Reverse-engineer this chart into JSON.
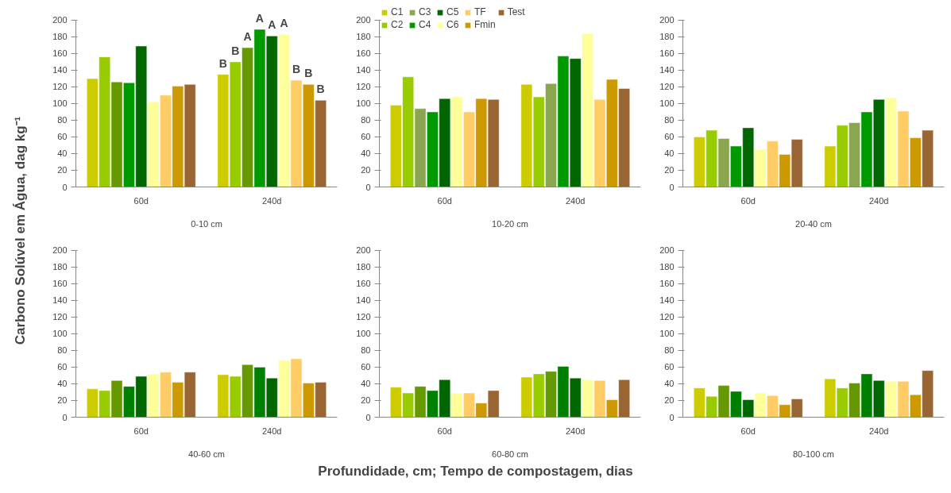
{
  "chart_data": [
    {
      "type": "bar",
      "xlabel": "0-10 cm",
      "ylabel": "Carbono Solúvel em Água, dag kg⁻¹",
      "categories": [
        "60d",
        "240d"
      ],
      "ylim": [
        0,
        200
      ],
      "yticks": [
        0,
        20,
        40,
        60,
        80,
        100,
        120,
        140,
        160,
        180,
        200
      ],
      "grid": false,
      "legend": false,
      "series": [
        {
          "color": "#cccc00",
          "values": [
            130,
            135
          ],
          "value_labels": [
            null,
            "B"
          ]
        },
        {
          "color": "#99cc00",
          "values": [
            156,
            150
          ],
          "value_labels": [
            null,
            "B"
          ]
        },
        {
          "color": "#669900",
          "values": [
            126,
            167
          ],
          "value_labels": [
            null,
            "A"
          ]
        },
        {
          "color": "#009900",
          "values": [
            125,
            189
          ],
          "value_labels": [
            null,
            "A"
          ]
        },
        {
          "color": "#006600",
          "values": [
            169,
            181
          ],
          "value_labels": [
            null,
            "A"
          ]
        },
        {
          "color": "#ffff99",
          "values": [
            102,
            183
          ],
          "value_labels": [
            null,
            "A"
          ]
        },
        {
          "color": "#ffcc66",
          "values": [
            110,
            128
          ],
          "value_labels": [
            null,
            "B"
          ]
        },
        {
          "color": "#cc9900",
          "values": [
            121,
            123
          ],
          "value_labels": [
            null,
            "B"
          ]
        },
        {
          "color": "#996633",
          "values": [
            123,
            104
          ],
          "value_labels": [
            null,
            "B"
          ]
        }
      ]
    },
    {
      "type": "bar",
      "xlabel": "10-20 cm",
      "categories": [
        "60d",
        "240d"
      ],
      "ylim": [
        0,
        200
      ],
      "yticks": [
        0,
        20,
        40,
        60,
        80,
        100,
        120,
        140,
        160,
        180,
        200
      ],
      "grid": false,
      "legend": "top",
      "series": [
        {
          "name": "C1",
          "color": "#cccc00",
          "values": [
            98,
            123
          ]
        },
        {
          "name": "C2",
          "color": "#99cc00",
          "values": [
            132,
            108
          ]
        },
        {
          "name": "C3",
          "color": "#8aa64e",
          "values": [
            94,
            124
          ]
        },
        {
          "name": "C4",
          "color": "#009900",
          "values": [
            90,
            157
          ]
        },
        {
          "name": "C5",
          "color": "#006600",
          "values": [
            106,
            154
          ]
        },
        {
          "name": "C6",
          "color": "#ffff99",
          "values": [
            108,
            184
          ]
        },
        {
          "name": "TF",
          "color": "#ffcc66",
          "values": [
            90,
            105
          ]
        },
        {
          "name": "Fmin",
          "color": "#cc9900",
          "values": [
            106,
            129
          ]
        },
        {
          "name": "Test",
          "color": "#996633",
          "values": [
            105,
            118
          ]
        }
      ]
    },
    {
      "type": "bar",
      "xlabel": "20-40 cm",
      "categories": [
        "60d",
        "240d"
      ],
      "ylim": [
        0,
        200
      ],
      "yticks": [
        0,
        20,
        40,
        60,
        80,
        100,
        120,
        140,
        160,
        180,
        200
      ],
      "grid": false,
      "legend": false,
      "series": [
        {
          "color": "#cccc00",
          "values": [
            60,
            49
          ]
        },
        {
          "color": "#99cc00",
          "values": [
            68,
            74
          ]
        },
        {
          "color": "#8aa64e",
          "values": [
            58,
            77
          ]
        },
        {
          "color": "#009900",
          "values": [
            49,
            90
          ]
        },
        {
          "color": "#006600",
          "values": [
            71,
            105
          ]
        },
        {
          "color": "#ffff99",
          "values": [
            45,
            107
          ]
        },
        {
          "color": "#ffcc66",
          "values": [
            55,
            91
          ]
        },
        {
          "color": "#cc9900",
          "values": [
            39,
            59
          ]
        },
        {
          "color": "#996633",
          "values": [
            57,
            68
          ]
        }
      ]
    },
    {
      "type": "bar",
      "xlabel": "40-60 cm",
      "categories": [
        "60d",
        "240d"
      ],
      "ylim": [
        0,
        200
      ],
      "yticks": [
        0,
        20,
        40,
        60,
        80,
        100,
        120,
        140,
        160,
        180,
        200
      ],
      "grid": false,
      "legend": false,
      "series": [
        {
          "color": "#cccc00",
          "values": [
            34,
            51
          ]
        },
        {
          "color": "#99cc00",
          "values": [
            32,
            49
          ]
        },
        {
          "color": "#669900",
          "values": [
            44,
            63
          ]
        },
        {
          "color": "#008000",
          "values": [
            37,
            60
          ]
        },
        {
          "color": "#006600",
          "values": [
            49,
            47
          ]
        },
        {
          "color": "#ffff99",
          "values": [
            52,
            68
          ]
        },
        {
          "color": "#ffcc66",
          "values": [
            54,
            70
          ]
        },
        {
          "color": "#cc9900",
          "values": [
            42,
            41
          ]
        },
        {
          "color": "#996633",
          "values": [
            54,
            42
          ]
        }
      ]
    },
    {
      "type": "bar",
      "xlabel": "60-80 cm",
      "annotations": [
        "Profundidade, cm; Tempo de compostagem, dias"
      ],
      "categories": [
        "60d",
        "240d"
      ],
      "ylim": [
        0,
        200
      ],
      "yticks": [
        0,
        20,
        40,
        60,
        80,
        100,
        120,
        140,
        160,
        180,
        200
      ],
      "grid": false,
      "legend": false,
      "series": [
        {
          "color": "#cccc00",
          "values": [
            36,
            48
          ]
        },
        {
          "color": "#99cc00",
          "values": [
            29,
            52
          ]
        },
        {
          "color": "#669900",
          "values": [
            37,
            55
          ]
        },
        {
          "color": "#008000",
          "values": [
            32,
            61
          ]
        },
        {
          "color": "#006600",
          "values": [
            45,
            47
          ]
        },
        {
          "color": "#ffff99",
          "values": [
            29,
            45
          ]
        },
        {
          "color": "#ffcc66",
          "values": [
            29,
            44
          ]
        },
        {
          "color": "#cc9900",
          "values": [
            17,
            21
          ]
        },
        {
          "color": "#996633",
          "values": [
            32,
            45
          ]
        }
      ]
    },
    {
      "type": "bar",
      "xlabel": "80-100 cm",
      "categories": [
        "60d",
        "240d"
      ],
      "ylim": [
        0,
        200
      ],
      "yticks": [
        0,
        20,
        40,
        60,
        80,
        100,
        120,
        140,
        160,
        180,
        200
      ],
      "grid": false,
      "legend": false,
      "series": [
        {
          "color": "#cccc00",
          "values": [
            35,
            46
          ]
        },
        {
          "color": "#99cc00",
          "values": [
            25,
            35
          ]
        },
        {
          "color": "#669900",
          "values": [
            38,
            41
          ]
        },
        {
          "color": "#008000",
          "values": [
            31,
            52
          ]
        },
        {
          "color": "#006600",
          "values": [
            21,
            44
          ]
        },
        {
          "color": "#ffff99",
          "values": [
            29,
            43
          ]
        },
        {
          "color": "#ffcc66",
          "values": [
            26,
            43
          ]
        },
        {
          "color": "#cc9900",
          "values": [
            15,
            27
          ]
        },
        {
          "color": "#996633",
          "values": [
            22,
            56
          ]
        }
      ]
    }
  ]
}
